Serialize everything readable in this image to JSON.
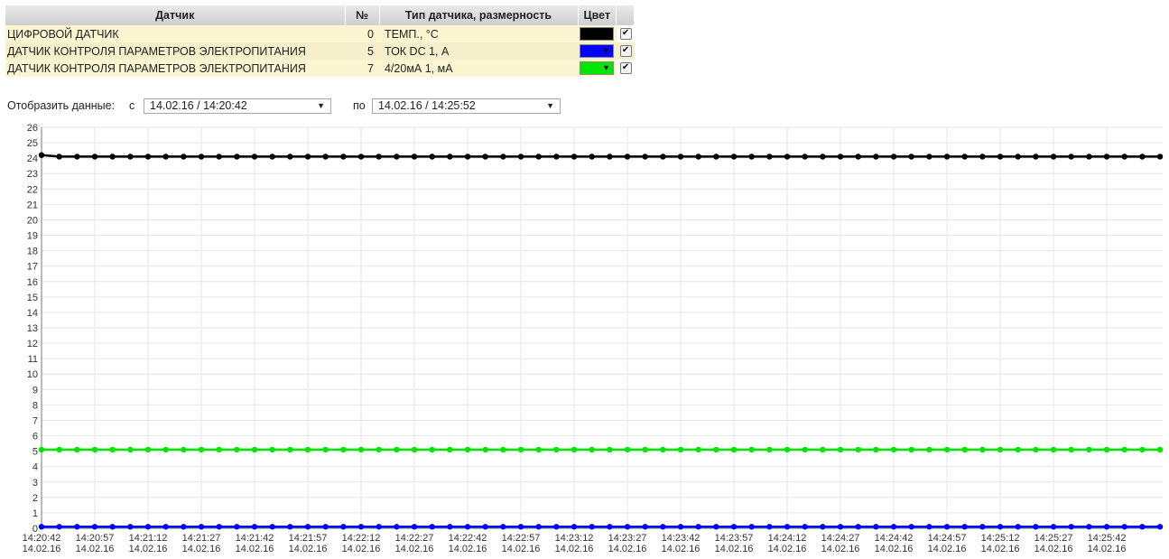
{
  "sensor_table": {
    "headers": {
      "sensor": "Датчик",
      "number": "№",
      "type": "Тип датчика, размерность",
      "color": "Цвет"
    },
    "rows": [
      {
        "name": "ЦИФРОВОЙ ДАТЧИК",
        "number": "0",
        "type": "ТЕМП., °С",
        "color": "#000000",
        "checked": true
      },
      {
        "name": "ДАТЧИК КОНТРОЛЯ ПАРАМЕТРОВ ЭЛЕКТРОПИТАНИЯ",
        "number": "5",
        "type": "ТОК DC 1, А",
        "color": "#0000ff",
        "checked": true
      },
      {
        "name": "ДАТЧИК КОНТРОЛЯ ПАРАМЕТРОВ ЭЛЕКТРОПИТАНИЯ",
        "number": "7",
        "type": "4/20мА 1, мА",
        "color": "#00e600",
        "checked": true
      }
    ]
  },
  "range": {
    "label": "Отобразить данные:",
    "from_label": "с",
    "from_value": "14.02.16 / 14:20:42",
    "to_label": "по",
    "to_value": "14.02.16 / 14:25:52"
  },
  "chart_data": {
    "type": "line",
    "title": "",
    "xlabel": "",
    "ylabel": "",
    "ylim": [
      0,
      26
    ],
    "yticks": [
      0,
      1,
      2,
      3,
      4,
      5,
      6,
      7,
      8,
      9,
      10,
      11,
      12,
      13,
      14,
      15,
      16,
      17,
      18,
      19,
      20,
      21,
      22,
      23,
      24,
      25,
      26
    ],
    "grid": true,
    "x_start": "14:20:42",
    "x_step_seconds": 5,
    "point_count": 64,
    "xtick_labels": [
      [
        "14:20:42",
        "14.02.16"
      ],
      [
        "14:20:57",
        "14.02.16"
      ],
      [
        "14:21:12",
        "14.02.16"
      ],
      [
        "14:21:27",
        "14.02.16"
      ],
      [
        "14:21:42",
        "14.02.16"
      ],
      [
        "14:21:57",
        "14.02.16"
      ],
      [
        "14:22:12",
        "14.02.16"
      ],
      [
        "14:22:27",
        "14.02.16"
      ],
      [
        "14:22:42",
        "14.02.16"
      ],
      [
        "14:22:57",
        "14.02.16"
      ],
      [
        "14:23:12",
        "14.02.16"
      ],
      [
        "14:23:27",
        "14.02.16"
      ],
      [
        "14:23:42",
        "14.02.16"
      ],
      [
        "14:23:57",
        "14.02.16"
      ],
      [
        "14:24:12",
        "14.02.16"
      ],
      [
        "14:24:27",
        "14.02.16"
      ],
      [
        "14:24:42",
        "14.02.16"
      ],
      [
        "14:24:57",
        "14.02.16"
      ],
      [
        "14:25:12",
        "14.02.16"
      ],
      [
        "14:25:27",
        "14.02.16"
      ],
      [
        "14:25:42",
        "14.02.16"
      ]
    ],
    "series": [
      {
        "color": "#000000",
        "first": 24.2,
        "value": 24.1
      },
      {
        "color": "#00e600",
        "first": 5.1,
        "value": 5.1
      },
      {
        "color": "#0000ff",
        "first": 0.1,
        "value": 0.1
      }
    ]
  }
}
